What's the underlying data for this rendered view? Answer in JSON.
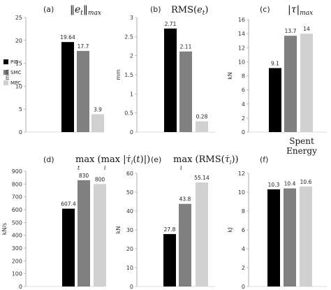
{
  "colors": {
    "PID": "#000000",
    "SMC": "#808080",
    "MPC": "#d0d0d0",
    "axis": "#999999"
  },
  "legend": [
    {
      "label": "PID",
      "color": "#000000"
    },
    {
      "label": "SMC",
      "color": "#808080"
    },
    {
      "label": "MPC",
      "color": "#d0d0d0"
    }
  ],
  "chart_data": [
    {
      "type": "bar",
      "panel": "(a)",
      "title": "‖e_t‖_max",
      "ylabel": "mm",
      "categories": [
        "PID",
        "SMC",
        "MPC"
      ],
      "values": [
        19.64,
        17.7,
        3.9
      ],
      "value_labels": [
        "19.64",
        "17.7",
        "3.9"
      ],
      "ylim": [
        0,
        25
      ],
      "yticks": [
        0,
        5,
        10,
        15,
        20,
        25
      ],
      "grid": false
    },
    {
      "type": "bar",
      "panel": "(b)",
      "title": "RMS(e_t)",
      "ylabel": "mm",
      "categories": [
        "PID",
        "SMC",
        "MPC"
      ],
      "values": [
        2.71,
        2.11,
        0.28
      ],
      "value_labels": [
        "2.71",
        "2.11",
        "0.28"
      ],
      "ylim": [
        0,
        3
      ],
      "yticks": [
        0,
        0.5,
        1,
        1.5,
        2,
        2.5,
        3
      ],
      "grid": false
    },
    {
      "type": "bar",
      "panel": "(c)",
      "title": "|τ|_max",
      "ylabel": "kN",
      "categories": [
        "PID",
        "SMC",
        "MPC"
      ],
      "values": [
        9.1,
        13.7,
        14
      ],
      "value_labels": [
        "9.1",
        "13.7",
        "14"
      ],
      "ylim": [
        0,
        16
      ],
      "yticks": [
        0,
        2,
        4,
        6,
        8,
        10,
        12,
        14,
        16
      ],
      "grid": false
    },
    {
      "type": "bar",
      "panel": "(d)",
      "title": "max_t ( max_i |τ̇_i(t)| )",
      "ylabel": "kN/s",
      "categories": [
        "PID",
        "SMC",
        "MPC"
      ],
      "values": [
        607.4,
        830,
        800
      ],
      "value_labels": [
        "607.4",
        "830",
        "800"
      ],
      "ylim": [
        0,
        900
      ],
      "yticks": [
        0,
        100,
        200,
        300,
        400,
        500,
        600,
        700,
        800,
        900
      ],
      "grid": false
    },
    {
      "type": "bar",
      "panel": "(e)",
      "title": "max_i ( RMS(τ̇_i) )",
      "ylabel": "kN",
      "categories": [
        "PID",
        "SMC",
        "MPC"
      ],
      "values": [
        27.8,
        43.8,
        55.14
      ],
      "value_labels": [
        "27.8",
        "43.8",
        "55.14"
      ],
      "ylim": [
        0,
        60
      ],
      "yticks": [
        0,
        10,
        20,
        30,
        40,
        50,
        60
      ],
      "grid": false
    },
    {
      "type": "bar",
      "panel": "(f)",
      "title": "Spent Energy",
      "ylabel": "kJ",
      "categories": [
        "PID",
        "SMC",
        "MPC"
      ],
      "values": [
        10.3,
        10.4,
        10.6
      ],
      "value_labels": [
        "10.3",
        "10.4",
        "10.6"
      ],
      "ylim": [
        0,
        12
      ],
      "yticks": [
        0,
        2,
        4,
        6,
        8,
        10,
        12
      ],
      "grid": false
    }
  ]
}
